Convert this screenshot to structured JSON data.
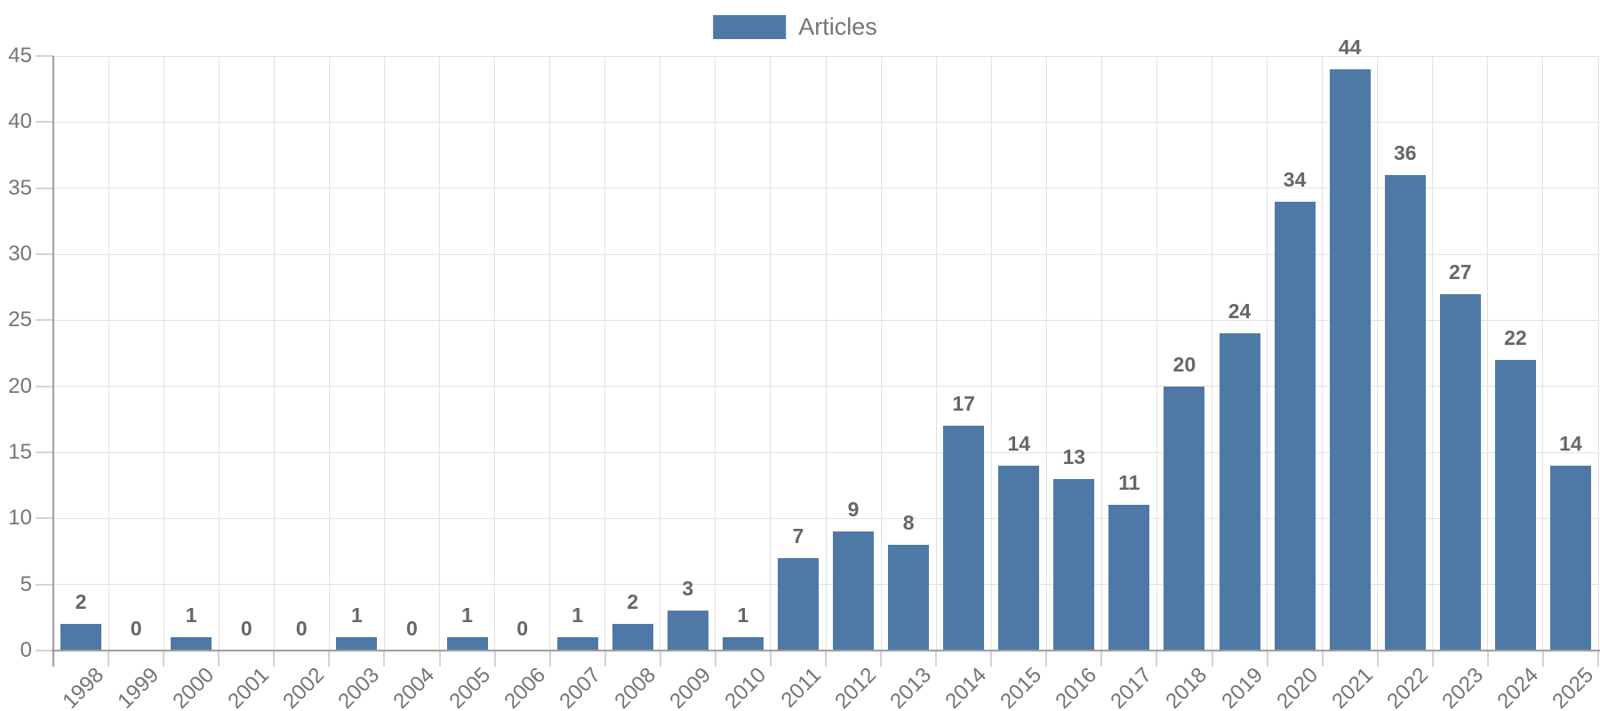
{
  "chart_data": {
    "type": "bar",
    "title": "",
    "categories": [
      "1998",
      "1999",
      "2000",
      "2001",
      "2002",
      "2003",
      "2004",
      "2005",
      "2006",
      "2007",
      "2008",
      "2009",
      "2010",
      "2011",
      "2012",
      "2013",
      "2014",
      "2015",
      "2016",
      "2017",
      "2018",
      "2019",
      "2020",
      "2021",
      "2022",
      "2023",
      "2024",
      "2025"
    ],
    "series": [
      {
        "name": "Articles",
        "color": "#4E79A7",
        "values": [
          2,
          0,
          1,
          0,
          0,
          1,
          0,
          1,
          0,
          1,
          2,
          3,
          1,
          7,
          9,
          8,
          17,
          14,
          13,
          11,
          20,
          24,
          34,
          44,
          36,
          27,
          22,
          14
        ]
      }
    ],
    "ylim": [
      0,
      45
    ],
    "ytick_step": 5,
    "yticks": [
      0,
      5,
      10,
      15,
      20,
      25,
      30,
      35,
      40,
      45
    ],
    "grid": true,
    "legend_position": "top-center",
    "bar_value_labels": true,
    "x_label_rotation_deg": -45,
    "colors": {
      "bar": "#4E79A7",
      "value_label": "#666666",
      "axis_label": "#757575",
      "legend_text": "#757575",
      "gridline": "#E2E2E2",
      "axis_line": "#9E9E9E",
      "tick": "#D4D4D4",
      "background": "#FFFFFF"
    }
  }
}
